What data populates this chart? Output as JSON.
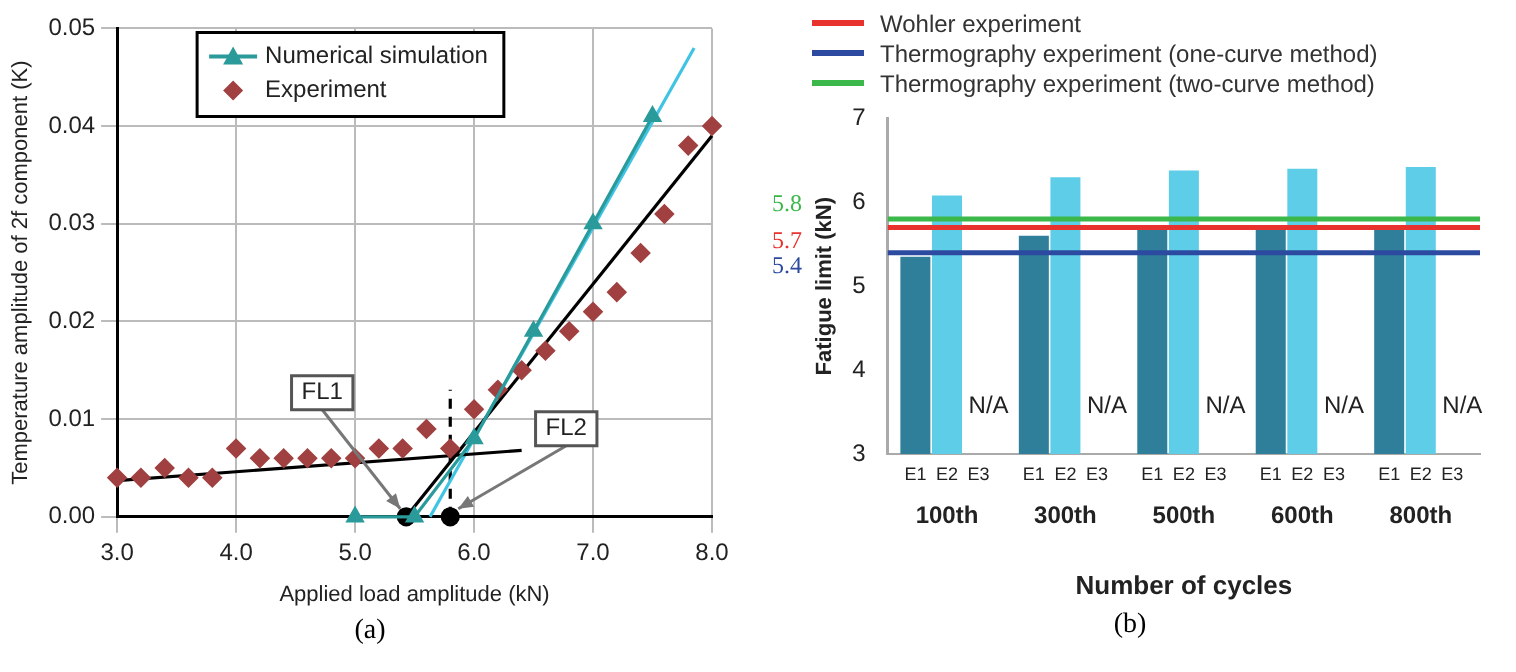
{
  "chart_data": [
    {
      "type": "scatter",
      "xlabel": "Applied load amplitude (kN)",
      "ylabel": "Temperature amplitude of 2f component (K)",
      "annotations": [
        {
          "text": "FL1",
          "x": 5.43,
          "y": 0
        },
        {
          "text": "FL2",
          "x": 5.8,
          "y": 0
        },
        "(a)"
      ],
      "xlim": [
        3.0,
        8.0
      ],
      "xticks": [
        {
          "value": 3,
          "label": "3.0"
        },
        {
          "value": 4,
          "label": "4.0"
        },
        {
          "value": 5,
          "label": "5.0"
        },
        {
          "value": 6,
          "label": "6.0"
        },
        {
          "value": 7,
          "label": "7.0"
        },
        {
          "value": 8,
          "label": "8.0"
        }
      ],
      "ylim": [
        0,
        0.05
      ],
      "yticks": [
        {
          "value": 0,
          "label": "0.00"
        },
        {
          "value": 0.01,
          "label": "0.01"
        },
        {
          "value": 0.02,
          "label": "0.02"
        },
        {
          "value": 0.03,
          "label": "0.03"
        },
        {
          "value": 0.04,
          "label": "0.04"
        },
        {
          "value": 0.05,
          "label": "0.05"
        }
      ],
      "grid": true,
      "legend": "top left",
      "series": [
        {
          "name": "Numerical simulation",
          "type": "line",
          "color": "#2a9a9a",
          "marker": "triangle",
          "x": [
            5.0,
            5.5,
            6.0,
            6.5,
            7.0,
            7.5
          ],
          "values": [
            0,
            0,
            0.008,
            0.019,
            0.03,
            0.041
          ]
        },
        {
          "name": "Experiment",
          "type": "scatter",
          "color": "#a04040",
          "marker": "diamond",
          "x": [
            3.0,
            3.2,
            3.4,
            3.6,
            3.8,
            4.0,
            4.2,
            4.4,
            4.6,
            4.8,
            5.0,
            5.2,
            5.4,
            5.6,
            5.8,
            6.0,
            6.2,
            6.4,
            6.6,
            6.8,
            7.0,
            7.2,
            7.4,
            7.6,
            7.8,
            8.0
          ],
          "values": [
            0.004,
            0.004,
            0.005,
            0.004,
            0.004,
            0.007,
            0.006,
            0.006,
            0.006,
            0.006,
            0.006,
            0.007,
            0.007,
            0.009,
            0.007,
            0.011,
            0.013,
            0.015,
            0.017,
            0.019,
            0.021,
            0.023,
            0.027,
            0.031,
            0.038,
            0.04
          ]
        },
        {
          "type": "line",
          "color": "#000000",
          "marker": "none",
          "x": [
            3.0,
            6.4
          ],
          "values": [
            0.0037,
            0.0068
          ]
        },
        {
          "type": "line",
          "color": "#000000",
          "marker": "none",
          "x": [
            5.43,
            8.0
          ],
          "values": [
            0,
            0.039
          ]
        },
        {
          "type": "line",
          "color": "#40c4e4",
          "marker": "none",
          "x": [
            5.63,
            7.85
          ],
          "values": [
            0,
            0.048
          ]
        },
        {
          "type": "line",
          "color": "#000000",
          "marker": "none",
          "line_style": "dashed",
          "x": [
            5.8,
            5.8
          ],
          "values": [
            0,
            0.013
          ]
        },
        {
          "type": "scatter",
          "color": "#000000",
          "marker": "circle",
          "x": [
            5.43,
            5.8
          ],
          "values": [
            0,
            0
          ]
        }
      ]
    },
    {
      "type": "bar",
      "xlabel": "Number of cycles",
      "ylabel": "Fatigue limit (kN)",
      "annotations": [
        "(b)",
        "5.7",
        "5.4",
        "5.8"
      ],
      "categories": [
        "100th",
        "300th",
        "500th",
        "600th",
        "800th"
      ],
      "ylim": [
        3,
        7
      ],
      "yticks": [
        3,
        4,
        5,
        6,
        7
      ],
      "legend": "top",
      "series": [
        {
          "name": "E1",
          "color": "#2f7f9a",
          "values": [
            5.35,
            5.6,
            5.67,
            5.67,
            5.67
          ]
        },
        {
          "name": "E2",
          "color": "#5ecde8",
          "values": [
            6.08,
            6.3,
            6.38,
            6.4,
            6.42
          ]
        },
        {
          "name": "E3",
          "values": [
            null,
            null,
            null,
            null,
            null
          ],
          "value_labels": [
            "N/A",
            "N/A",
            "N/A",
            "N/A",
            "N/A"
          ]
        }
      ],
      "ref_lines": [
        {
          "axis": "y",
          "value": 5.7,
          "label": "Wohler experiment",
          "color": "#e8322e"
        },
        {
          "axis": "y",
          "value": 5.4,
          "label": "Thermography experiment (one-curve method)",
          "color": "#2b4aa0"
        },
        {
          "axis": "y",
          "value": 5.8,
          "label": "Thermography experiment (two-curve method)",
          "color": "#3cb84a"
        }
      ]
    }
  ]
}
